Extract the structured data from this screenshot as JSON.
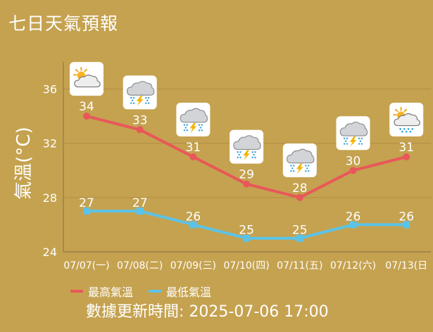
{
  "title": "七日天氣預報",
  "chart_data": {
    "type": "line",
    "categories": [
      "07/07(一)",
      "07/08(二)",
      "07/09(三)",
      "07/10(四)",
      "07/11(五)",
      "07/12(六)",
      "07/13(日"
    ],
    "series": [
      {
        "name": "最高氣溫",
        "values": [
          34,
          33,
          31,
          29,
          28,
          30,
          31
        ],
        "color": "#e8585a"
      },
      {
        "name": "最低氣溫",
        "values": [
          27,
          27,
          26,
          25,
          25,
          26,
          26
        ],
        "color": "#5bc3e8"
      }
    ],
    "weather_icons": [
      "partly-cloudy",
      "thunder-rain",
      "thunder-rain",
      "thunder-rain",
      "thunder-rain",
      "thunder-rain",
      "partly-cloudy-rain"
    ],
    "ylabel": "氣溫(°C)",
    "ylim": [
      24,
      38
    ],
    "yticks": [
      24,
      28,
      32,
      36
    ],
    "grid": true,
    "legend": "bottom"
  },
  "footer": {
    "updated": "數據更新時間: 2025-07-06 17:00"
  }
}
